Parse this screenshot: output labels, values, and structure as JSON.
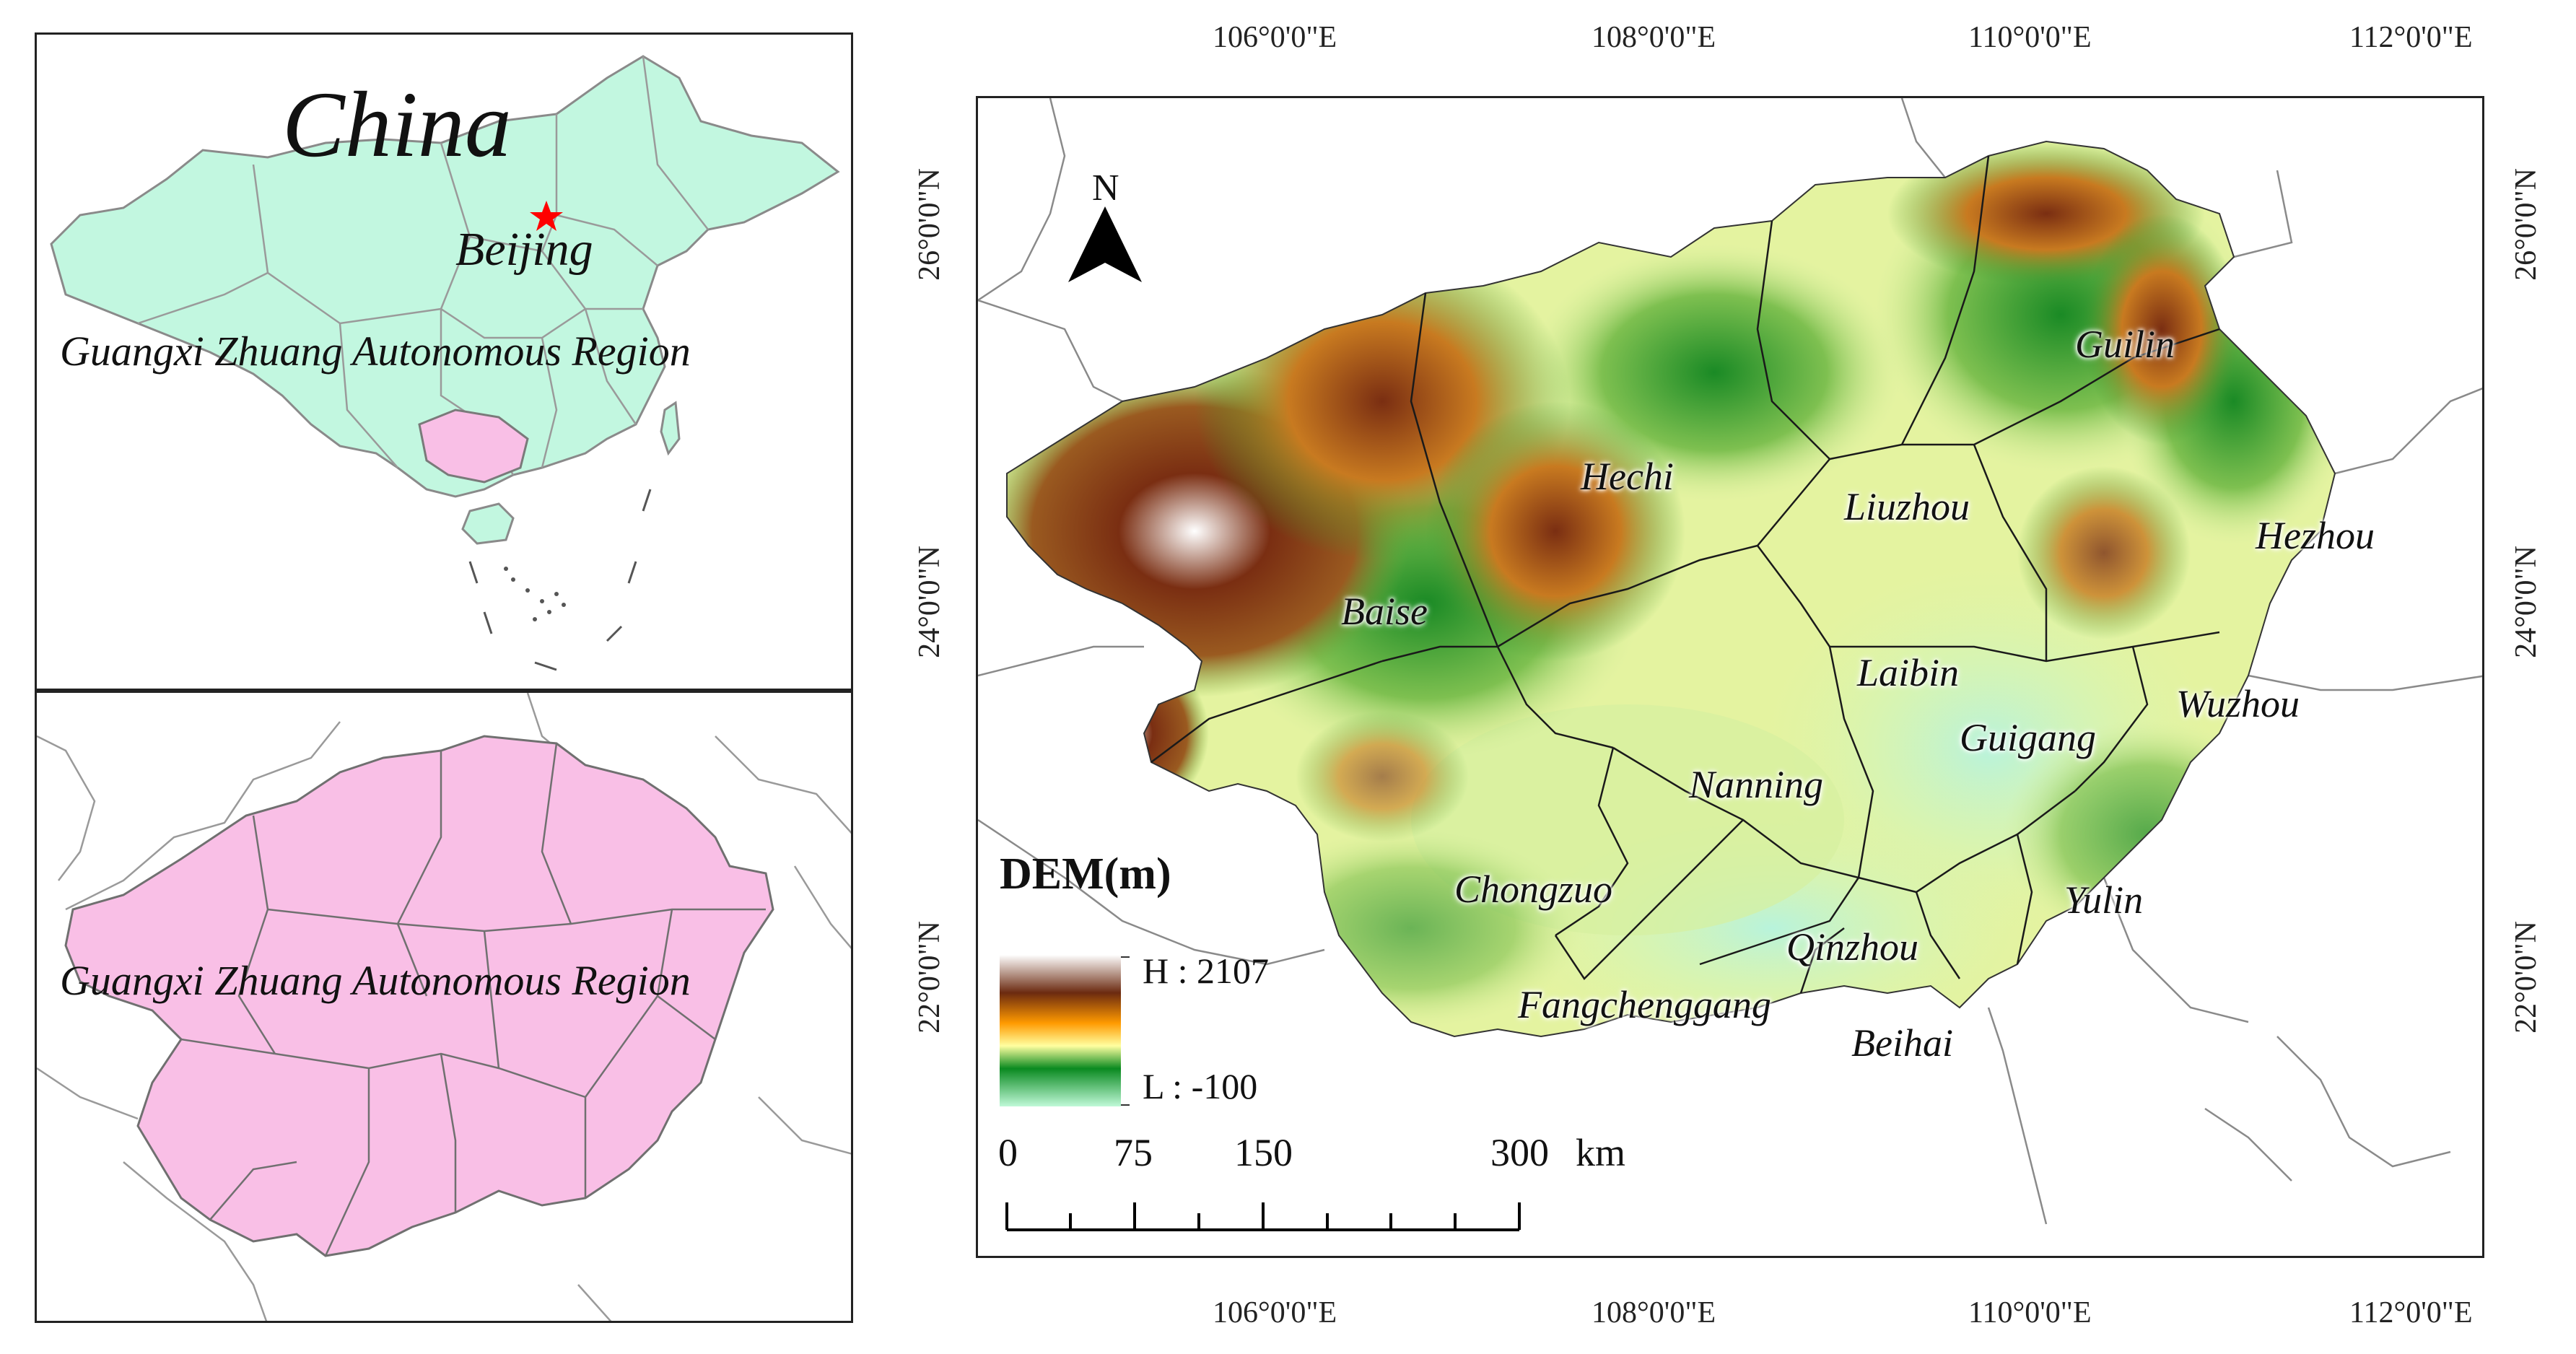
{
  "inset_china": {
    "title": "China",
    "capital_label": "Beijing",
    "region_label": "Guangxi Zhuang Autonomous Region",
    "land_color": "#c2f7e0",
    "highlight_color": "#f9bfe6",
    "capital_marker_color": "#ff0000"
  },
  "inset_guangxi": {
    "region_label": "Guangxi Zhuang Autonomous Region",
    "fill_color": "#f9bfe6"
  },
  "main_map": {
    "lon_labels": [
      "106°0'0\"E",
      "108°0'0\"E",
      "110°0'0\"E",
      "112°0'0\"E"
    ],
    "lat_labels": [
      "26°0'0\"N",
      "24°0'0\"N",
      "22°0'0\"N"
    ],
    "north_arrow_label": "N",
    "cities": [
      {
        "name": "Guilin"
      },
      {
        "name": "Hechi"
      },
      {
        "name": "Liuzhou"
      },
      {
        "name": "Hezhou"
      },
      {
        "name": "Baise"
      },
      {
        "name": "Laibin"
      },
      {
        "name": "Wuzhou"
      },
      {
        "name": "Guigang"
      },
      {
        "name": "Nanning"
      },
      {
        "name": "Chongzuo"
      },
      {
        "name": "Yulin"
      },
      {
        "name": "Qinzhou"
      },
      {
        "name": "Fangchenggang"
      },
      {
        "name": "Beihai"
      }
    ],
    "legend": {
      "title": "DEM(m)",
      "high_label": "H : 2107",
      "low_label": "L : -100",
      "ramp_colors": [
        "#ffffff",
        "#6b2a10",
        "#ff9a00",
        "#ffffa0",
        "#0a8a20",
        "#c0f9d8"
      ]
    },
    "scale_bar": {
      "ticks": [
        "0",
        "75",
        "150",
        "300"
      ],
      "unit": "km"
    }
  }
}
